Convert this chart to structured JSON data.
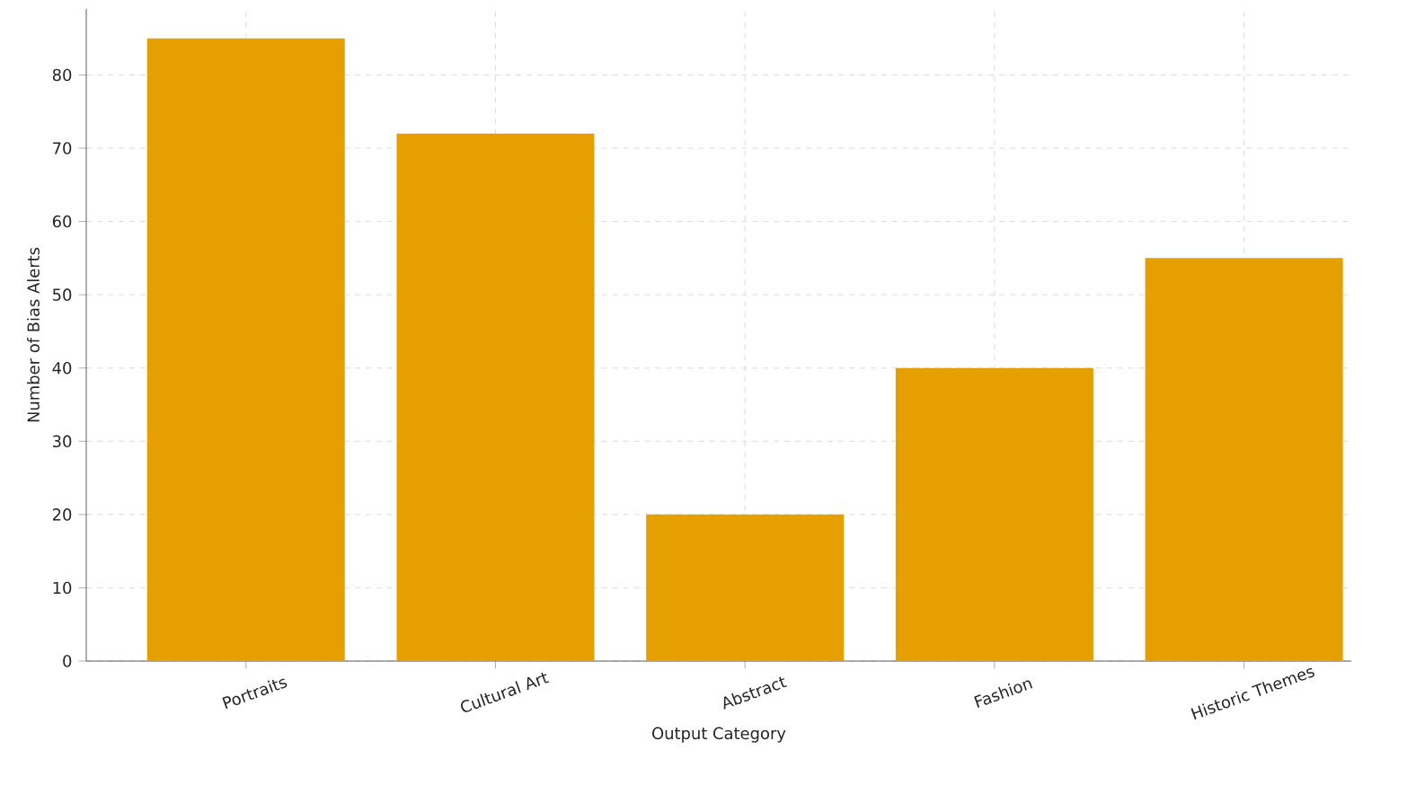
{
  "chart_data": {
    "type": "bar",
    "xlabel": "Output Category",
    "ylabel": "Number of Bias Alerts",
    "categories": [
      "Portraits",
      "Cultural Art",
      "Abstract",
      "Fashion",
      "Historic Themes"
    ],
    "values": [
      85,
      72,
      20,
      40,
      55
    ],
    "color": "#e69f00",
    "ylim": [
      0,
      89
    ],
    "yticks": [
      0,
      10,
      20,
      30,
      40,
      50,
      60,
      70,
      80
    ],
    "grid": true
  }
}
